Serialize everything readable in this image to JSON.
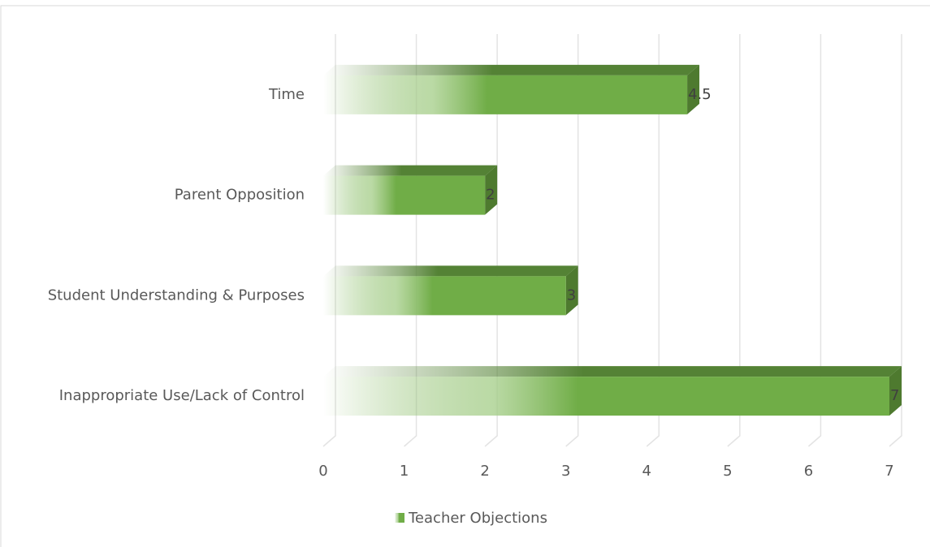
{
  "chart_data": {
    "type": "bar",
    "orientation": "horizontal",
    "categories": [
      "Time",
      "Parent Opposition",
      "Student Understanding & Purposes",
      "Inappropriate Use/Lack of Control"
    ],
    "series": [
      {
        "name": "Teacher Objections",
        "color": "#70ad47",
        "values": [
          4.5,
          2,
          3,
          7
        ]
      }
    ],
    "xlim": [
      0,
      7
    ],
    "xticks": [
      0,
      1,
      2,
      3,
      4,
      5,
      6,
      7
    ],
    "grid": true,
    "legend": "bottom"
  }
}
